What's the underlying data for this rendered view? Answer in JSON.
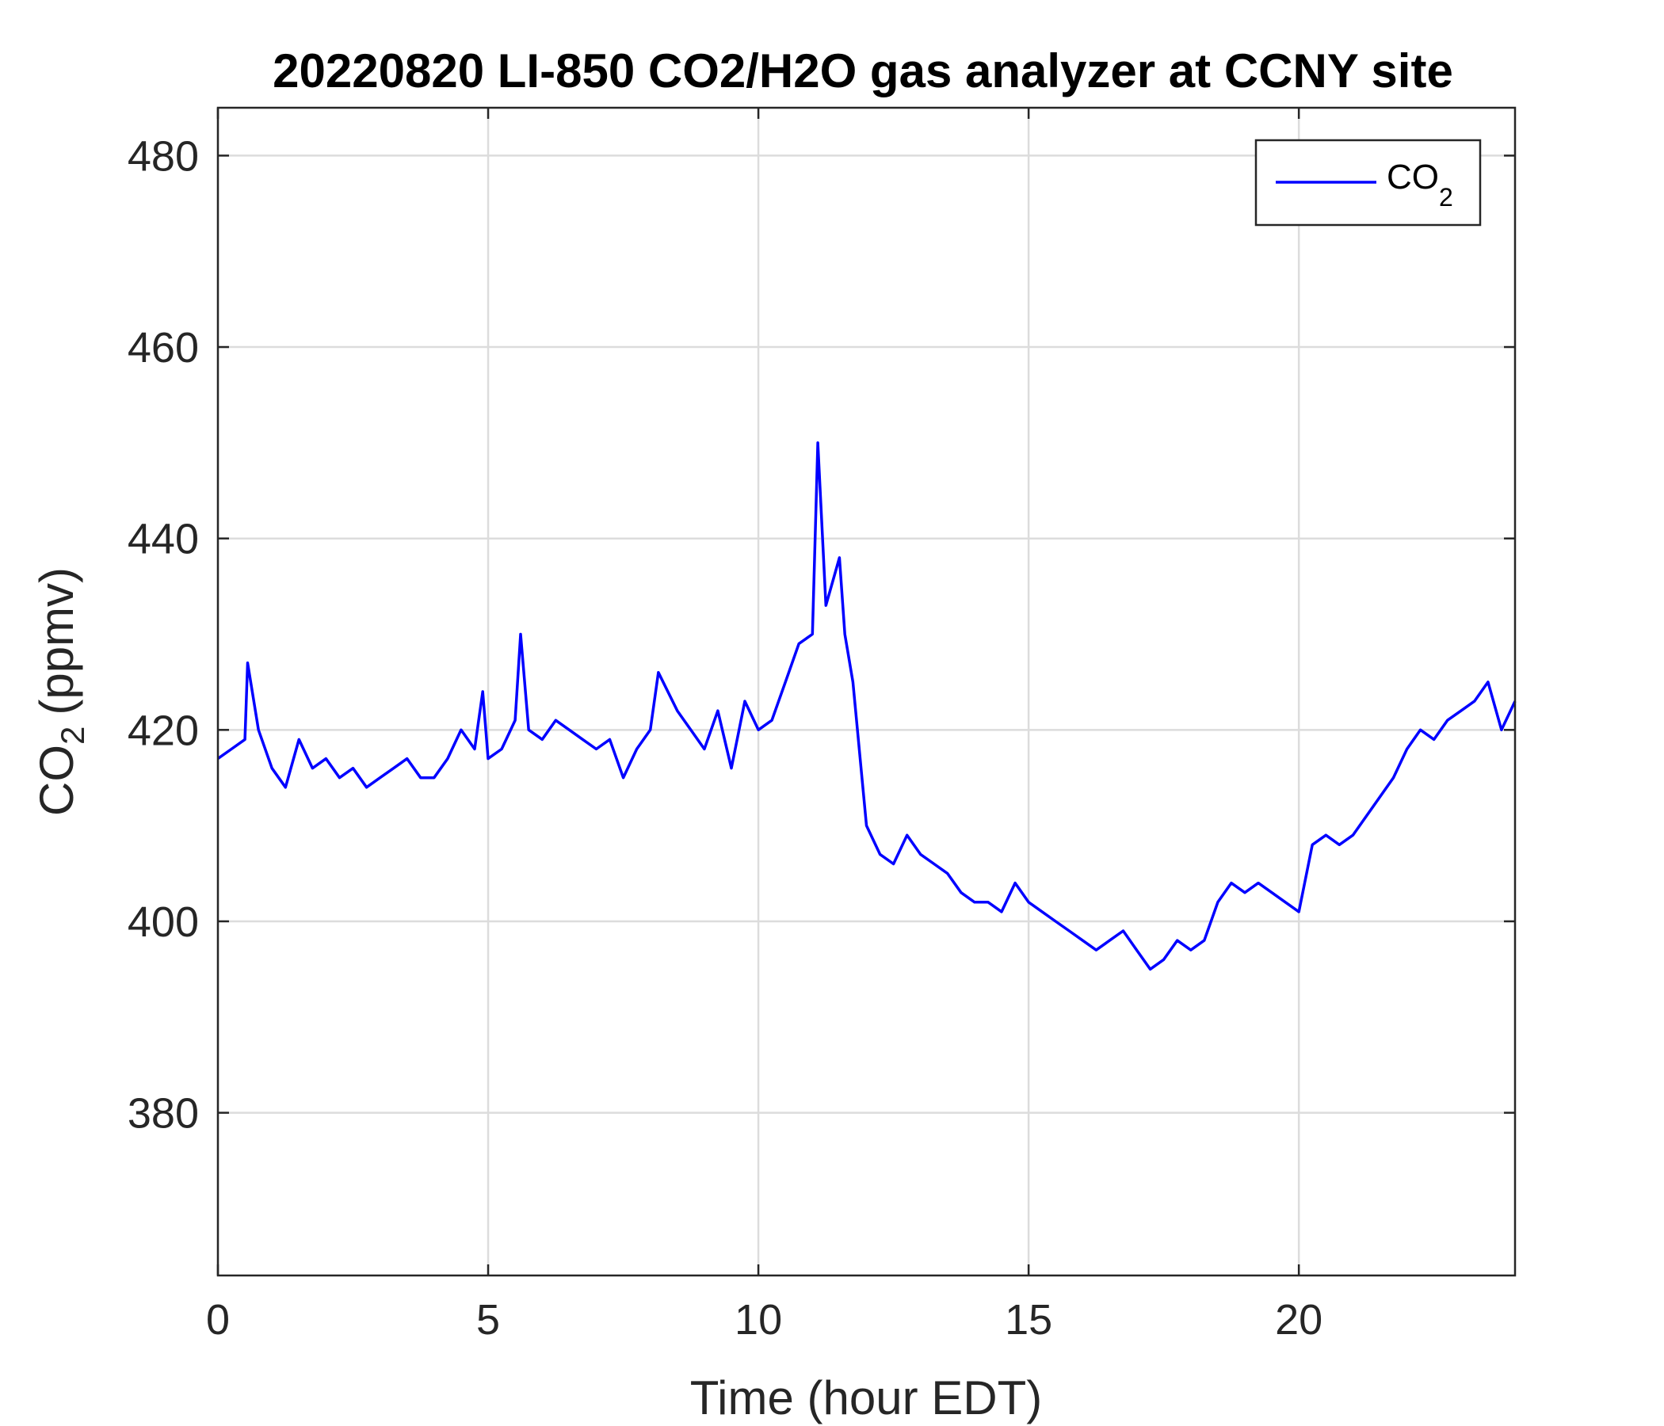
{
  "chart_data": {
    "type": "line",
    "title": "20220820 LI-850 CO2/H2O gas analyzer at CCNY site",
    "xlabel": "Time (hour EDT)",
    "ylabel": {
      "main": "CO",
      "subscript": "2",
      "unit": "(ppmv)"
    },
    "xlim": [
      0,
      24
    ],
    "ylim": [
      363,
      485
    ],
    "xticks": [
      0,
      5,
      10,
      15,
      20
    ],
    "yticks": [
      380,
      400,
      420,
      440,
      460,
      480
    ],
    "grid": true,
    "legend": {
      "position": "top-right",
      "entries": [
        {
          "label": "CO",
          "subscript": "2"
        }
      ]
    },
    "series": [
      {
        "name": "CO2",
        "color": "#0000ff",
        "x": [
          0,
          0.25,
          0.5,
          0.55,
          0.75,
          1.0,
          1.25,
          1.5,
          1.75,
          2.0,
          2.25,
          2.5,
          2.75,
          3.0,
          3.25,
          3.5,
          3.75,
          4.0,
          4.25,
          4.5,
          4.75,
          4.9,
          5.0,
          5.25,
          5.5,
          5.6,
          5.75,
          6.0,
          6.25,
          6.5,
          6.75,
          7.0,
          7.25,
          7.5,
          7.75,
          8.0,
          8.15,
          8.5,
          8.75,
          9.0,
          9.25,
          9.5,
          9.75,
          10.0,
          10.25,
          10.5,
          10.75,
          11.0,
          11.1,
          11.25,
          11.5,
          11.6,
          11.75,
          12.0,
          12.25,
          12.5,
          12.75,
          13.0,
          13.25,
          13.5,
          13.75,
          14.0,
          14.25,
          14.5,
          14.75,
          15.0,
          15.25,
          15.5,
          15.75,
          16.0,
          16.25,
          16.5,
          16.75,
          17.0,
          17.25,
          17.5,
          17.75,
          18.0,
          18.25,
          18.5,
          18.75,
          19.0,
          19.25,
          19.5,
          19.75,
          20.0,
          20.25,
          20.5,
          20.75,
          21.0,
          21.25,
          21.5,
          21.75,
          22.0,
          22.25,
          22.5,
          22.75,
          23.0,
          23.25,
          23.5,
          23.75,
          24.0
        ],
        "y": [
          417,
          418,
          419,
          427,
          420,
          416,
          414,
          419,
          416,
          417,
          415,
          416,
          414,
          415,
          416,
          417,
          415,
          415,
          417,
          420,
          418,
          424,
          417,
          418,
          421,
          430,
          420,
          419,
          421,
          420,
          419,
          418,
          419,
          415,
          418,
          420,
          426,
          422,
          420,
          418,
          422,
          416,
          423,
          420,
          421,
          425,
          429,
          430,
          450,
          433,
          438,
          430,
          425,
          410,
          407,
          406,
          409,
          407,
          406,
          405,
          403,
          402,
          402,
          401,
          404,
          402,
          401,
          400,
          399,
          398,
          397,
          398,
          399,
          397,
          395,
          396,
          398,
          397,
          398,
          402,
          404,
          403,
          404,
          403,
          402,
          401,
          408,
          409,
          408,
          409,
          411,
          413,
          415,
          418,
          420,
          419,
          421,
          422,
          423,
          425,
          420,
          423
        ]
      }
    ]
  }
}
